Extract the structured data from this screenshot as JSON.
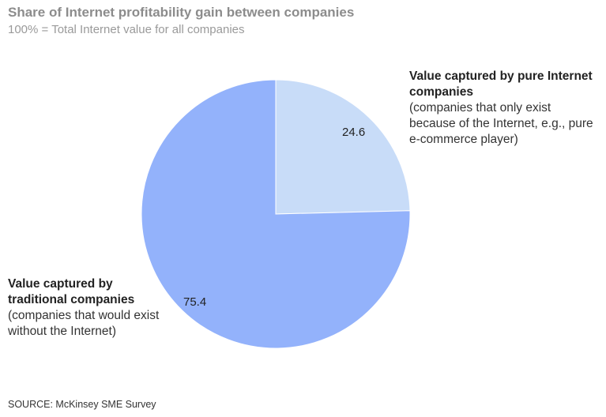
{
  "header": {
    "title": "Share of Internet profitability gain between companies",
    "subtitle": "100% = Total Internet value for all companies"
  },
  "chart_data": {
    "type": "pie",
    "title": "Share of Internet profitability gain between companies",
    "subtitle": "100% = Total Internet value for all companies",
    "slices": [
      {
        "key": "pure",
        "value": 24.6,
        "value_label": "24.6",
        "label_head": "Value captured by pure Internet companies",
        "label_desc": "(companies that only exist because of the Internet, e.g., pure e-commerce player)",
        "color": "#c8dcf8"
      },
      {
        "key": "traditional",
        "value": 75.4,
        "value_label": "75.4",
        "label_head": "Value captured by traditional companies",
        "label_desc": "(companies that would exist without the Internet)",
        "color": "#93b2fb"
      }
    ],
    "start_angle_deg": 0,
    "direction": "clockwise",
    "legend": "none"
  },
  "footer": {
    "source": "SOURCE: McKinsey SME Survey"
  }
}
